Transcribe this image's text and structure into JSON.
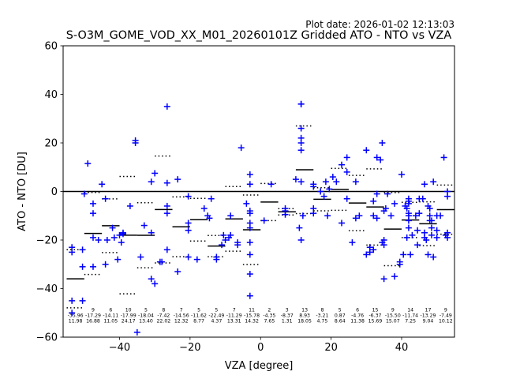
{
  "chart_data": {
    "type": "scatter",
    "title": "S-O3M_GOME_VOD_XX_M01_20260101Z Gridded ATO - NTO vs VZA",
    "plot_date": "Plot date: 2026-01-02 12:13:03",
    "xlabel": "VZA [degree]",
    "ylabel": "ATO - NTO [DU]",
    "xlim": [
      -56,
      55
    ],
    "ylim": [
      -60,
      60
    ],
    "x_ticks": [
      -40,
      -20,
      0,
      20,
      40
    ],
    "y_ticks": [
      -60,
      -40,
      -20,
      0,
      20,
      40,
      60
    ],
    "grid": false,
    "colors": {
      "points": "#0000ff",
      "mean": "#000000",
      "std": "#000000",
      "zero_line": "#000000"
    },
    "bins": [
      {
        "lo": -55,
        "hi": -50,
        "count": "",
        "mean": "-35.96",
        "std": "11.98",
        "m": -35.96,
        "s": 11.98
      },
      {
        "lo": -50,
        "hi": -45,
        "count": "9",
        "mean": "-17.29",
        "std": "16.88",
        "m": -17.29,
        "s": 16.88
      },
      {
        "lo": -45,
        "hi": -40,
        "count": "6",
        "mean": "-14.11",
        "std": "11.05",
        "m": -14.11,
        "s": 11.05
      },
      {
        "lo": -40,
        "hi": -35,
        "count": "10",
        "mean": "-17.99",
        "std": "24.17",
        "m": -17.99,
        "s": 24.17
      },
      {
        "lo": -35,
        "hi": -30,
        "count": "5",
        "mean": "-18.04",
        "std": "13.40",
        "m": -18.04,
        "s": 13.4
      },
      {
        "lo": -30,
        "hi": -25,
        "count": "8",
        "mean": "-7.42",
        "std": "22.02",
        "m": -7.42,
        "s": 22.02
      },
      {
        "lo": -25,
        "hi": -20,
        "count": "7",
        "mean": "-14.56",
        "std": "12.32",
        "m": -14.56,
        "s": 12.32
      },
      {
        "lo": -20,
        "hi": -15,
        "count": "5",
        "mean": "-11.62",
        "std": "8.77",
        "m": -11.62,
        "s": 8.77
      },
      {
        "lo": -15,
        "hi": -10,
        "count": "5",
        "mean": "-22.49",
        "std": "4.37",
        "m": -22.49,
        "s": 4.37
      },
      {
        "lo": -10,
        "hi": -5,
        "count": "7",
        "mean": "-11.29",
        "std": "13.31",
        "m": -11.29,
        "s": 13.31
      },
      {
        "lo": -5,
        "hi": 0,
        "count": "11",
        "mean": "-15.78",
        "std": "14.32",
        "m": -15.78,
        "s": 14.32
      },
      {
        "lo": 0,
        "hi": 5,
        "count": "2",
        "mean": "-4.35",
        "std": "7.65",
        "m": -4.35,
        "s": 7.65
      },
      {
        "lo": 5,
        "hi": 10,
        "count": "3",
        "mean": "-8.37",
        "std": "1.31",
        "m": -8.37,
        "s": 1.31
      },
      {
        "lo": 10,
        "hi": 15,
        "count": "13",
        "mean": "8.93",
        "std": "18.05",
        "m": 8.93,
        "s": 18.05
      },
      {
        "lo": 15,
        "hi": 20,
        "count": "8",
        "mean": "-3.21",
        "std": "4.75",
        "m": -3.21,
        "s": 4.75
      },
      {
        "lo": 20,
        "hi": 25,
        "count": "5",
        "mean": "0.87",
        "std": "8.64",
        "m": 0.87,
        "s": 8.64
      },
      {
        "lo": 25,
        "hi": 30,
        "count": "6",
        "mean": "-4.76",
        "std": "11.38",
        "m": -4.76,
        "s": 11.38
      },
      {
        "lo": 30,
        "hi": 35,
        "count": "15",
        "mean": "-6.37",
        "std": "15.69",
        "m": -6.37,
        "s": 15.69
      },
      {
        "lo": 35,
        "hi": 40,
        "count": "9",
        "mean": "-15.50",
        "std": "15.07",
        "m": -15.5,
        "s": 15.07
      },
      {
        "lo": 40,
        "hi": 45,
        "count": "14",
        "mean": "-11.74",
        "std": "7.25",
        "m": -11.74,
        "s": 7.25
      },
      {
        "lo": 45,
        "hi": 50,
        "count": "17",
        "mean": "-13.29",
        "std": "9.04",
        "m": -13.29,
        "s": 9.04
      },
      {
        "lo": 50,
        "hi": 55,
        "count": "9",
        "mean": "-7.49",
        "std": "10.12",
        "m": -7.49,
        "s": 10.12
      }
    ],
    "points": [
      [
        -53.5,
        -45
      ],
      [
        -53.5,
        -50
      ],
      [
        -53.5,
        -25
      ],
      [
        -53.5,
        -23
      ],
      [
        -50.5,
        -45
      ],
      [
        -50.5,
        -24
      ],
      [
        -50.5,
        -31
      ],
      [
        -50,
        -1
      ],
      [
        -49,
        11.5
      ],
      [
        -47.5,
        -19
      ],
      [
        -47.5,
        -31
      ],
      [
        -47.5,
        -9
      ],
      [
        -47.5,
        -5
      ],
      [
        -46,
        -20
      ],
      [
        -45,
        3
      ],
      [
        -44,
        -3
      ],
      [
        -44,
        -30
      ],
      [
        -43.5,
        -20
      ],
      [
        -42,
        -15
      ],
      [
        -41.5,
        -19
      ],
      [
        -40.5,
        -28
      ],
      [
        -40,
        -18
      ],
      [
        -39.5,
        -21
      ],
      [
        -39,
        -17
      ],
      [
        -39,
        -17.5
      ],
      [
        -37,
        -6
      ],
      [
        -35.5,
        20
      ],
      [
        -35.5,
        21
      ],
      [
        -35,
        -58
      ],
      [
        -34,
        -27
      ],
      [
        -33,
        -14
      ],
      [
        -31,
        -36
      ],
      [
        -31,
        -17
      ],
      [
        -31,
        4
      ],
      [
        -30,
        -38
      ],
      [
        -30,
        7.5
      ],
      [
        -28.5,
        -29
      ],
      [
        -28,
        -29
      ],
      [
        -26.5,
        35
      ],
      [
        -26.5,
        -24
      ],
      [
        -26.5,
        -9
      ],
      [
        -26.5,
        3.5
      ],
      [
        -26.5,
        -6
      ],
      [
        -23.5,
        -33
      ],
      [
        -23.5,
        5
      ],
      [
        -20.5,
        -27
      ],
      [
        -20.5,
        -16
      ],
      [
        -20.5,
        -13
      ],
      [
        -20.5,
        -2
      ],
      [
        -18,
        -28
      ],
      [
        -16,
        -7
      ],
      [
        -15,
        -10
      ],
      [
        -14.5,
        -11
      ],
      [
        -14,
        -3
      ],
      [
        -12.5,
        -27
      ],
      [
        -12.5,
        -28
      ],
      [
        -11,
        -22
      ],
      [
        -10.5,
        -18
      ],
      [
        -10,
        -20
      ],
      [
        -9,
        -19
      ],
      [
        -8.5,
        -18
      ],
      [
        -8.5,
        -10
      ],
      [
        -6.5,
        -22
      ],
      [
        -6.5,
        -21
      ],
      [
        -5.5,
        18
      ],
      [
        -4,
        -5
      ],
      [
        -3,
        -43
      ],
      [
        -3,
        -34
      ],
      [
        -3,
        -26
      ],
      [
        -3,
        -21
      ],
      [
        -3,
        -15
      ],
      [
        -3,
        -13
      ],
      [
        -3,
        -9
      ],
      [
        -3,
        -8
      ],
      [
        -3,
        3
      ],
      [
        -3,
        7
      ],
      [
        1,
        -12
      ],
      [
        3,
        3
      ],
      [
        7,
        -8
      ],
      [
        7,
        -9.5
      ],
      [
        7,
        -7
      ],
      [
        10,
        5
      ],
      [
        11,
        -15
      ],
      [
        11.5,
        17
      ],
      [
        11.5,
        20
      ],
      [
        11.5,
        22
      ],
      [
        11.5,
        26
      ],
      [
        11.5,
        36
      ],
      [
        11.5,
        36
      ],
      [
        11.5,
        -20
      ],
      [
        11.5,
        4
      ],
      [
        12,
        -10
      ],
      [
        15,
        -9
      ],
      [
        15,
        -7
      ],
      [
        15,
        2
      ],
      [
        15,
        3
      ],
      [
        17,
        0
      ],
      [
        18,
        -2
      ],
      [
        18.5,
        4
      ],
      [
        19,
        -10
      ],
      [
        19.5,
        1
      ],
      [
        20.5,
        6
      ],
      [
        21.5,
        4
      ],
      [
        23,
        11
      ],
      [
        23,
        -13
      ],
      [
        24.5,
        8
      ],
      [
        24.5,
        -3
      ],
      [
        24.5,
        14
      ],
      [
        26,
        -21
      ],
      [
        27,
        4
      ],
      [
        27,
        -11
      ],
      [
        28,
        -10
      ],
      [
        30,
        17
      ],
      [
        30,
        -26
      ],
      [
        31,
        -25
      ],
      [
        31,
        -23
      ],
      [
        32,
        -24
      ],
      [
        32,
        -4
      ],
      [
        32,
        -10
      ],
      [
        33,
        -11
      ],
      [
        33,
        14
      ],
      [
        33,
        -1
      ],
      [
        34,
        13
      ],
      [
        34.5,
        20
      ],
      [
        34.5,
        -21
      ],
      [
        35,
        -22
      ],
      [
        35,
        -20
      ],
      [
        35,
        -36
      ],
      [
        35,
        -8
      ],
      [
        35.5,
        -7
      ],
      [
        36,
        -1
      ],
      [
        37,
        -10
      ],
      [
        38,
        -35
      ],
      [
        38,
        -5
      ],
      [
        39.5,
        -30
      ],
      [
        39.5,
        -29
      ],
      [
        40,
        7
      ],
      [
        40.5,
        -26
      ],
      [
        41,
        -6
      ],
      [
        41.5,
        -7
      ],
      [
        41.5,
        -19
      ],
      [
        42,
        -10
      ],
      [
        42,
        -5
      ],
      [
        42,
        -3
      ],
      [
        42,
        -4
      ],
      [
        42,
        -12
      ],
      [
        42,
        -15
      ],
      [
        42,
        -9
      ],
      [
        42.5,
        -26
      ],
      [
        43,
        -18
      ],
      [
        44,
        -10
      ],
      [
        44.5,
        -16
      ],
      [
        44.5,
        -22
      ],
      [
        45,
        -9
      ],
      [
        45,
        -3
      ],
      [
        46,
        -3
      ],
      [
        46.5,
        3
      ],
      [
        46.5,
        -17
      ],
      [
        46.5,
        -19
      ],
      [
        47,
        -20
      ],
      [
        47.5,
        -26
      ],
      [
        47.5,
        -6
      ],
      [
        48,
        -12
      ],
      [
        48,
        -7
      ],
      [
        48,
        -10
      ],
      [
        48.5,
        -12
      ],
      [
        48.5,
        -18
      ],
      [
        48.5,
        -15
      ],
      [
        49,
        -27
      ],
      [
        49,
        4
      ],
      [
        50,
        -10
      ],
      [
        50,
        -16
      ],
      [
        50,
        -19
      ],
      [
        51,
        -10
      ],
      [
        52,
        14
      ],
      [
        52.5,
        -18
      ],
      [
        53,
        -19
      ],
      [
        53,
        -17
      ],
      [
        53,
        -2
      ],
      [
        53,
        0
      ]
    ]
  }
}
